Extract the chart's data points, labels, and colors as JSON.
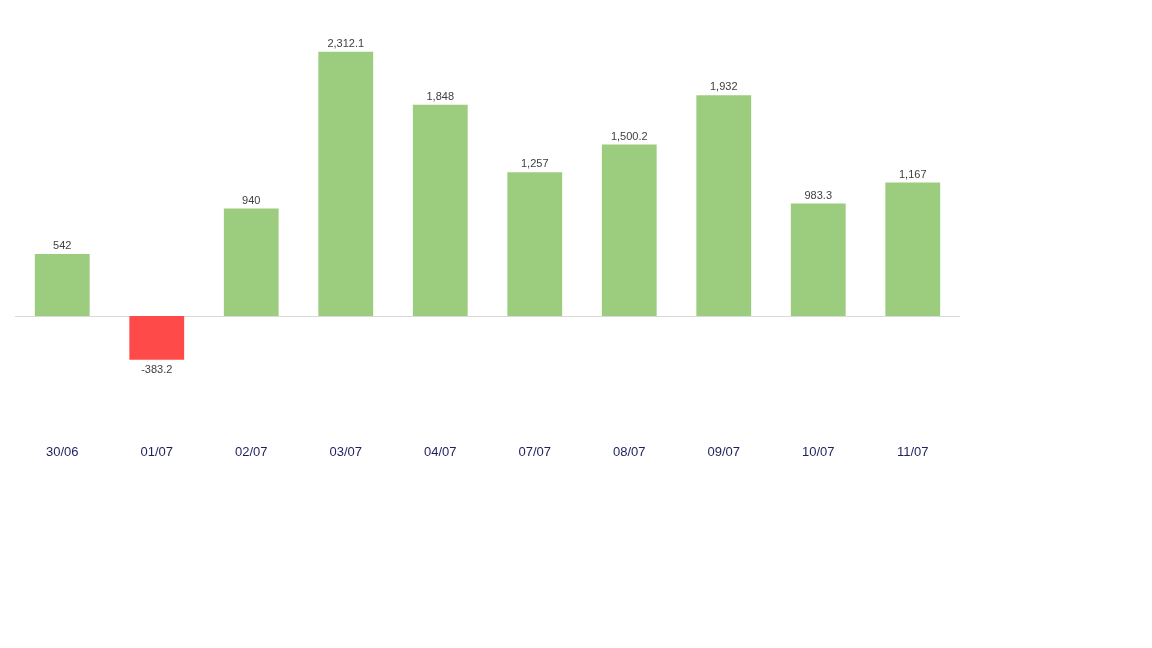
{
  "chart_data": {
    "type": "bar",
    "categories": [
      "30/06",
      "01/07",
      "02/07",
      "03/07",
      "04/07",
      "07/07",
      "08/07",
      "09/07",
      "10/07",
      "11/07"
    ],
    "values": [
      542,
      -383.2,
      940,
      2312.1,
      1848,
      1257,
      1500.2,
      1932,
      983.3,
      1167
    ],
    "value_labels": [
      "542",
      "-383.2",
      "940",
      "2,312.1",
      "1,848",
      "1,257",
      "1,500.2",
      "1,932",
      "983.3",
      "1,167"
    ],
    "colors": [
      "#9ccc7e",
      "#ff4a4a",
      "#9ccc7e",
      "#9ccc7e",
      "#9ccc7e",
      "#9ccc7e",
      "#9ccc7e",
      "#9ccc7e",
      "#9ccc7e",
      "#9ccc7e"
    ],
    "tick_labels": "x"
  }
}
